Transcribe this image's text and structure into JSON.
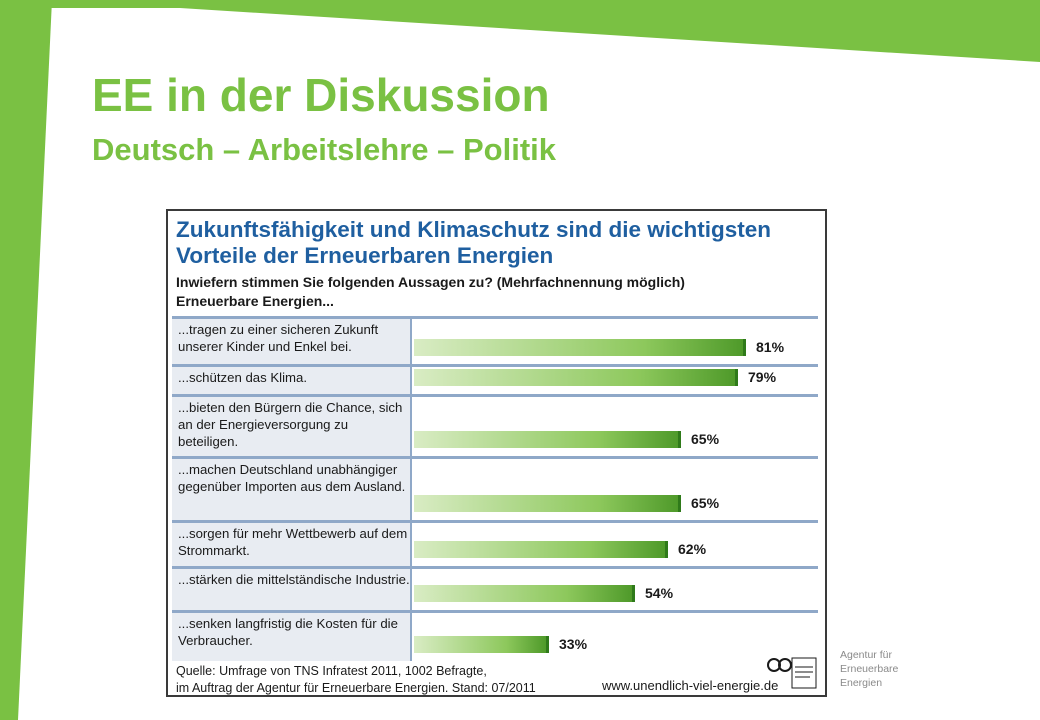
{
  "slide": {
    "title": "EE in der Diskussion",
    "subtitle": "Deutsch – Arbeitslehre – Politik",
    "accent_color": "#7ac143",
    "side_note": "Agentur für Erneuerbare Energien"
  },
  "infographic": {
    "title": "Zukunftsfähigkeit und Klimaschutz sind die wichtigsten Vorteile der Erneuerbaren Energien",
    "question": "Inwiefern stimmen Sie folgenden Aussagen zu? (Mehrfachnennung möglich)",
    "intro": "Erneuerbare Energien...",
    "source_line1": "Quelle: Umfrage von TNS Infratest 2011, 1002 Befragte,",
    "source_line2": "im Auftrag der Agentur für Erneuerbare Energien. Stand: 07/2011",
    "url": "www.unendlich-viel-energie.de",
    "title_color": "#1f5fa0",
    "bar_color": "#7ac143"
  },
  "chart_data": {
    "type": "bar",
    "orientation": "horizontal",
    "categories": [
      "...tragen zu einer sicheren Zukunft unserer Kinder und Enkel bei.",
      "...schützen das Klima.",
      "...bieten den Bürgern die Chance, sich an der Energieversorgung zu beteiligen.",
      "...machen Deutschland unabhängiger gegenüber Importen aus dem Ausland.",
      "...sorgen für mehr Wettbewerb auf dem Strommarkt.",
      "...stärken die mittelständische Industrie.",
      "...senken langfristig die Kosten für die Verbraucher."
    ],
    "values": [
      81,
      79,
      65,
      65,
      62,
      54,
      33
    ],
    "value_labels": [
      "81%",
      "79%",
      "65%",
      "65%",
      "62%",
      "54%",
      "33%"
    ],
    "unit": "%",
    "xlim": [
      0,
      100
    ],
    "grid": false,
    "legend": "none"
  }
}
